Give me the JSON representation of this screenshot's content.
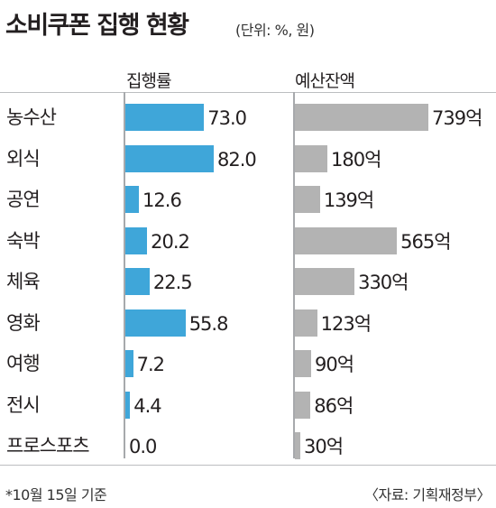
{
  "title": "소비쿠폰 집행 현황",
  "unit": "(단위: %, 원)",
  "footnote_left": "*10월 15일 기준",
  "footnote_right": "〈자료: 기획재정부〉",
  "chart_data": {
    "type": "bar",
    "orientation": "horizontal",
    "categories": [
      "농수산",
      "외식",
      "공연",
      "숙박",
      "체육",
      "영화",
      "여행",
      "전시",
      "프로스포츠"
    ],
    "series": [
      {
        "name": "집행률",
        "values": [
          73.0,
          82.0,
          12.6,
          20.2,
          22.5,
          55.8,
          7.2,
          4.4,
          0.0
        ],
        "labels": [
          "73.0",
          "82.0",
          "12.6",
          "20.2",
          "22.5",
          "55.8",
          "7.2",
          "4.4",
          "0.0"
        ],
        "color": "#3fa6d9"
      },
      {
        "name": "예산잔액",
        "values": [
          739,
          180,
          139,
          565,
          330,
          123,
          90,
          86,
          30
        ],
        "labels": [
          "739억",
          "180억",
          "139억",
          "565억",
          "330억",
          "123억",
          "90억",
          "86억",
          "30억"
        ],
        "color": "#b3b3b3"
      }
    ]
  }
}
